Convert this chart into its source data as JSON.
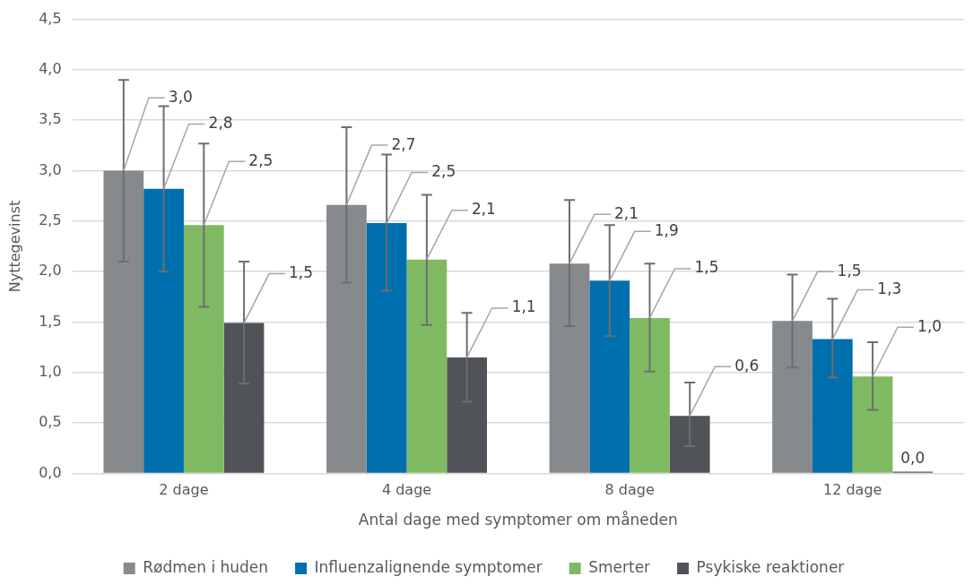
{
  "chart_data": {
    "type": "bar",
    "xlabel": "Antal dage med symptomer om måneden",
    "ylabel": "Nyttegevinst",
    "categories": [
      "2 dage",
      "4 dage",
      "8 dage",
      "12 dage"
    ],
    "series": [
      {
        "name": "Rødmen i huden",
        "color": "#868a8d",
        "values": [
          3.0,
          2.66,
          2.08,
          1.51
        ],
        "errors": [
          [
            2.1,
            3.9
          ],
          [
            1.89,
            3.43
          ],
          [
            1.46,
            2.71
          ],
          [
            1.05,
            1.97
          ]
        ],
        "value_labels": [
          "3,0",
          "2,7",
          "2,1",
          "1,5"
        ]
      },
      {
        "name": "Influenzalignende symptomer",
        "color": "#006fae",
        "values": [
          2.82,
          2.48,
          1.91,
          1.33
        ],
        "errors": [
          [
            2.0,
            3.64
          ],
          [
            1.81,
            3.16
          ],
          [
            1.36,
            2.46
          ],
          [
            0.95,
            1.73
          ]
        ],
        "value_labels": [
          "2,8",
          "2,5",
          "1,9",
          "1,3"
        ]
      },
      {
        "name": "Smerter",
        "color": "#7fba63",
        "values": [
          2.46,
          2.12,
          1.54,
          0.96
        ],
        "errors": [
          [
            1.65,
            3.27
          ],
          [
            1.47,
            2.76
          ],
          [
            1.01,
            2.08
          ],
          [
            0.63,
            1.3
          ]
        ],
        "value_labels": [
          "2,5",
          "2,1",
          "1,5",
          "1,0"
        ]
      },
      {
        "name": "Psykiske reaktioner",
        "color": "#505357",
        "values": [
          1.49,
          1.15,
          0.57,
          0.0
        ],
        "errors": [
          [
            0.89,
            2.1
          ],
          [
            0.71,
            1.59
          ],
          [
            0.27,
            0.9
          ],
          null
        ],
        "value_labels": [
          "1,5",
          "1,1",
          "0,6",
          "0,0"
        ]
      }
    ],
    "ylim": [
      0,
      4.5
    ],
    "yticks": [
      {
        "value": 0,
        "label": "0,0"
      },
      {
        "value": 0.5,
        "label": "0,5"
      },
      {
        "value": 1,
        "label": "1,0"
      },
      {
        "value": 1.5,
        "label": "1,5"
      },
      {
        "value": 2,
        "label": "2,0"
      },
      {
        "value": 2.5,
        "label": "2,5"
      },
      {
        "value": 3,
        "label": "3,0"
      },
      {
        "value": 3.5,
        "label": "3,5"
      },
      {
        "value": 4,
        "label": "4,0"
      },
      {
        "value": 4.5,
        "label": "4,5"
      }
    ],
    "grid": "y",
    "legend": "bottom"
  }
}
